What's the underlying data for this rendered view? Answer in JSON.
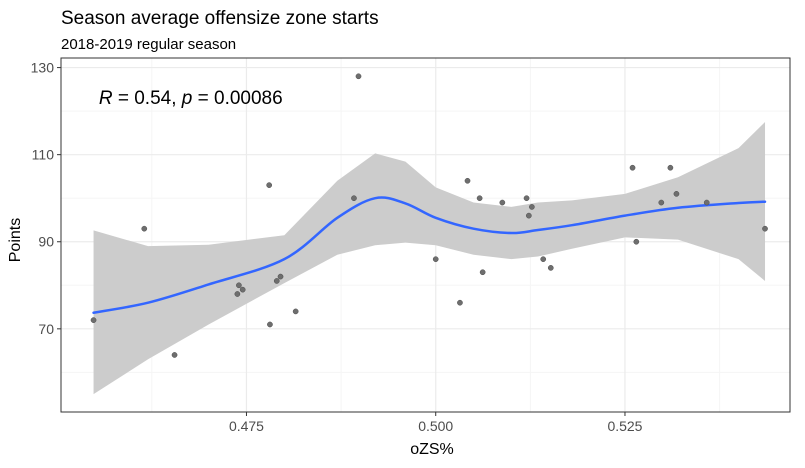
{
  "chart_data": {
    "type": "scatter",
    "title": "Season average offensize zone starts",
    "subtitle": "2018-2019 regular season",
    "xlabel": "oZS%",
    "ylabel": "Points",
    "xlim": [
      0.4505,
      0.5468
    ],
    "ylim": [
      50.9,
      132.2
    ],
    "x_ticks": [
      0.475,
      0.5,
      0.525
    ],
    "x_tick_labels": [
      "0.475",
      "0.500",
      "0.525"
    ],
    "y_ticks": [
      70,
      90,
      110,
      130
    ],
    "y_tick_labels": [
      "70",
      "90",
      "110",
      "130"
    ],
    "x_minor_ticks": [
      0.4625,
      0.4875,
      0.5125,
      0.5375
    ],
    "y_minor_ticks": [
      60,
      80,
      100,
      120
    ],
    "grid": true,
    "annotation": {
      "R_symbol": "R",
      "R_text": " = 0.54, ",
      "p_symbol": "p",
      "p_text": " = 0.00086",
      "x": 0.4555,
      "y": 123.3
    },
    "points": [
      {
        "x": 0.4548,
        "y": 72
      },
      {
        "x": 0.4615,
        "y": 93
      },
      {
        "x": 0.4655,
        "y": 64
      },
      {
        "x": 0.4738,
        "y": 78
      },
      {
        "x": 0.474,
        "y": 80
      },
      {
        "x": 0.4745,
        "y": 79
      },
      {
        "x": 0.478,
        "y": 103
      },
      {
        "x": 0.4781,
        "y": 71
      },
      {
        "x": 0.479,
        "y": 81
      },
      {
        "x": 0.4795,
        "y": 82
      },
      {
        "x": 0.4815,
        "y": 74
      },
      {
        "x": 0.4892,
        "y": 100
      },
      {
        "x": 0.4898,
        "y": 128
      },
      {
        "x": 0.5,
        "y": 86
      },
      {
        "x": 0.5032,
        "y": 76
      },
      {
        "x": 0.5042,
        "y": 104
      },
      {
        "x": 0.5058,
        "y": 100
      },
      {
        "x": 0.5062,
        "y": 83
      },
      {
        "x": 0.5088,
        "y": 99
      },
      {
        "x": 0.512,
        "y": 100
      },
      {
        "x": 0.5123,
        "y": 96
      },
      {
        "x": 0.5127,
        "y": 98
      },
      {
        "x": 0.5142,
        "y": 86
      },
      {
        "x": 0.5152,
        "y": 84
      },
      {
        "x": 0.526,
        "y": 107
      },
      {
        "x": 0.5265,
        "y": 90
      },
      {
        "x": 0.5298,
        "y": 99
      },
      {
        "x": 0.531,
        "y": 107
      },
      {
        "x": 0.5318,
        "y": 101
      },
      {
        "x": 0.5358,
        "y": 99
      },
      {
        "x": 0.5435,
        "y": 93
      }
    ],
    "smooth_fit": {
      "color": "#3366ff",
      "x": [
        0.4548,
        0.462,
        0.47,
        0.48,
        0.487,
        0.492,
        0.496,
        0.5,
        0.505,
        0.51,
        0.5135,
        0.518,
        0.525,
        0.532,
        0.54,
        0.5435
      ],
      "y": [
        73.7,
        76.0,
        80.2,
        86.0,
        95.5,
        100.0,
        98.8,
        95.5,
        93.0,
        92.0,
        92.7,
        93.8,
        96.0,
        97.8,
        98.9,
        99.2
      ],
      "lower": [
        55.0,
        63.0,
        71.0,
        80.5,
        87.0,
        89.2,
        89.8,
        89.2,
        87.0,
        86.0,
        86.6,
        88.4,
        91.0,
        90.5,
        86.0,
        81.0
      ],
      "upper": [
        92.6,
        89.0,
        89.3,
        91.5,
        104.0,
        110.3,
        108.4,
        102.5,
        99.0,
        98.0,
        99.0,
        99.5,
        101.0,
        104.8,
        111.5,
        117.5
      ]
    },
    "colors": {
      "point": "#6e6e6e",
      "point_stroke": "#4d4d4d",
      "band": "#cccccc",
      "panel_border": "#333333",
      "grid_major": "#ebebeb",
      "grid_minor": "#f5f5f5",
      "tick_label": "#4d4d4d",
      "title": "#000000"
    }
  }
}
